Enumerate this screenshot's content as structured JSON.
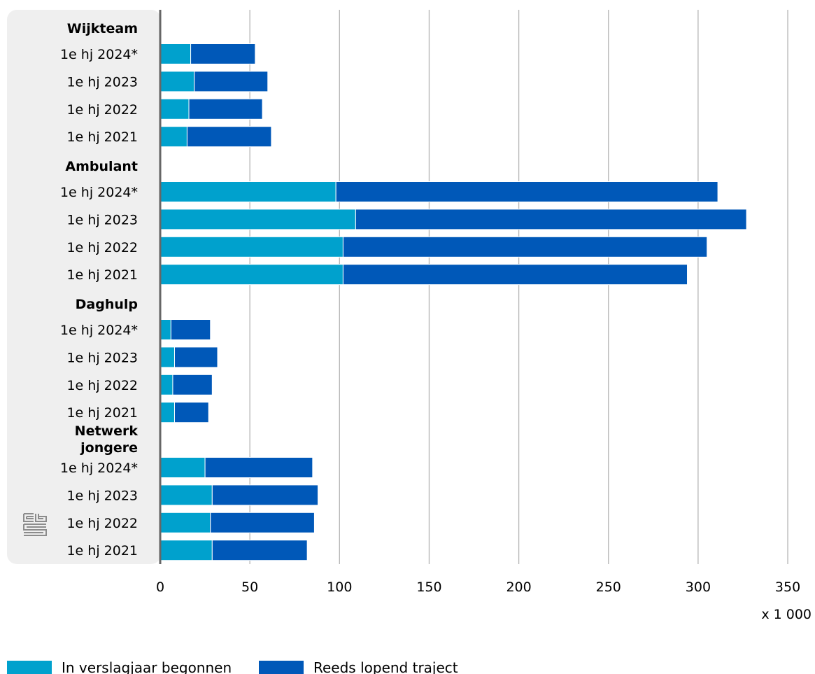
{
  "chart_data": {
    "type": "bar",
    "orientation": "horizontal",
    "stacked": true,
    "unit_label": "x 1 000",
    "xlim": [
      0,
      350
    ],
    "x_ticks": [
      "0",
      "50",
      "100",
      "150",
      "200",
      "250",
      "300",
      "350"
    ],
    "grid": true,
    "legend_position": "bottom",
    "series": [
      {
        "name": "In verslagjaar begonnen",
        "color": "#00a1cd"
      },
      {
        "name": "Reeds lopend traject",
        "color": "#0058b8"
      }
    ],
    "groups": [
      {
        "label": "Wijkteam",
        "rows": [
          {
            "label": "1e hj 2024*",
            "values": [
              17,
              36
            ]
          },
          {
            "label": "1e hj 2023",
            "values": [
              19,
              41
            ]
          },
          {
            "label": "1e hj 2022",
            "values": [
              16,
              41
            ]
          },
          {
            "label": "1e hj 2021",
            "values": [
              15,
              47
            ]
          }
        ]
      },
      {
        "label": "Ambulant",
        "rows": [
          {
            "label": "1e hj 2024*",
            "values": [
              98,
              213
            ]
          },
          {
            "label": "1e hj 2023",
            "values": [
              109,
              218
            ]
          },
          {
            "label": "1e hj 2022",
            "values": [
              102,
              203
            ]
          },
          {
            "label": "1e hj 2021",
            "values": [
              102,
              192
            ]
          }
        ]
      },
      {
        "label": "Daghulp",
        "rows": [
          {
            "label": "1e hj 2024*",
            "values": [
              6,
              22
            ]
          },
          {
            "label": "1e hj 2023",
            "values": [
              8,
              24
            ]
          },
          {
            "label": "1e hj 2022",
            "values": [
              7,
              22
            ]
          },
          {
            "label": "1e hj 2021",
            "values": [
              8,
              19
            ]
          }
        ]
      },
      {
        "label": "Netwerk\njongere",
        "rows": [
          {
            "label": "1e hj 2024*",
            "values": [
              25,
              60
            ]
          },
          {
            "label": "1e hj 2023",
            "values": [
              29,
              59
            ]
          },
          {
            "label": "1e hj 2022",
            "values": [
              28,
              58
            ]
          },
          {
            "label": "1e hj 2021",
            "values": [
              29,
              53
            ]
          }
        ]
      }
    ]
  }
}
